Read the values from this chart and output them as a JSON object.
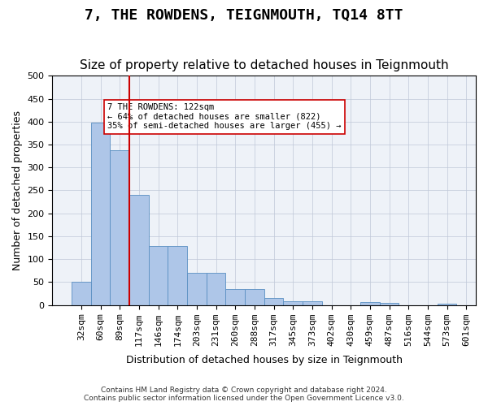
{
  "title": "7, THE ROWDENS, TEIGNMOUTH, TQ14 8TT",
  "subtitle": "Size of property relative to detached houses in Teignmouth",
  "xlabel": "Distribution of detached houses by size in Teignmouth",
  "ylabel": "Number of detached properties",
  "footer_line1": "Contains HM Land Registry data © Crown copyright and database right 2024.",
  "footer_line2": "Contains public sector information licensed under the Open Government Licence v3.0.",
  "bin_labels": [
    "32sqm",
    "60sqm",
    "89sqm",
    "117sqm",
    "146sqm",
    "174sqm",
    "203sqm",
    "231sqm",
    "260sqm",
    "288sqm",
    "317sqm",
    "345sqm",
    "373sqm",
    "402sqm",
    "430sqm",
    "459sqm",
    "487sqm",
    "516sqm",
    "544sqm",
    "573sqm",
    "601sqm"
  ],
  "bar_values": [
    50,
    398,
    338,
    240,
    128,
    128,
    70,
    70,
    35,
    35,
    15,
    8,
    8,
    0,
    0,
    6,
    5,
    0,
    0,
    3
  ],
  "bar_color": "#aec6e8",
  "bar_edge_color": "#5a8fc2",
  "vline_x_index": 3,
  "vline_color": "#cc0000",
  "annotation_text": "7 THE ROWDENS: 122sqm\n← 64% of detached houses are smaller (822)\n35% of semi-detached houses are larger (455) →",
  "annotation_box_color": "#ffffff",
  "annotation_box_edge_color": "#cc0000",
  "ylim": [
    0,
    500
  ],
  "yticks": [
    0,
    50,
    100,
    150,
    200,
    250,
    300,
    350,
    400,
    450,
    500
  ],
  "background_color": "#eef2f8",
  "title_fontsize": 13,
  "subtitle_fontsize": 11,
  "axis_label_fontsize": 9,
  "tick_fontsize": 8
}
